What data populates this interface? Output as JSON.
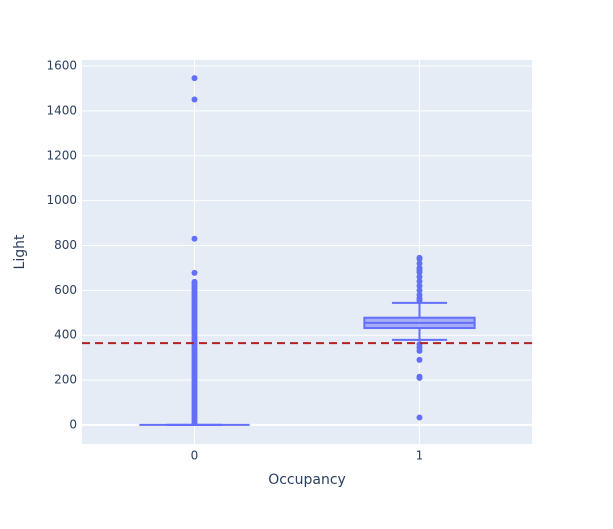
{
  "chart_data": {
    "type": "box",
    "x_label": "Occupancy",
    "y_label": "Light",
    "categories": [
      "0",
      "1"
    ],
    "color": "#636efa",
    "boxes": [
      {
        "min": 0,
        "q1": 0,
        "median": 0,
        "q3": 0,
        "max": 0,
        "outliers": [
          1546,
          1451,
          830,
          678,
          638,
          630,
          620,
          610,
          600,
          590,
          580,
          570,
          560,
          550,
          540,
          530,
          520,
          510,
          500,
          490,
          480,
          470,
          460,
          450,
          440,
          430,
          420,
          410,
          400,
          390,
          380,
          370,
          360,
          350,
          340,
          330,
          320,
          310,
          300,
          290,
          280,
          270,
          260,
          250,
          240,
          230,
          220,
          210,
          200,
          190,
          180,
          170,
          160,
          150,
          140,
          130,
          120,
          110,
          100,
          90,
          80,
          70,
          60,
          50,
          40,
          30,
          20,
          10
        ]
      },
      {
        "min": 379,
        "q1": 432,
        "median": 455,
        "q3": 478,
        "max": 544,
        "outliers": [
          745,
          740,
          720,
          700,
          690,
          680,
          660,
          640,
          620,
          600,
          580,
          565,
          555,
          360,
          345,
          330,
          290,
          215,
          210,
          33
        ]
      }
    ],
    "hline": {
      "value": 365,
      "color": "#b22222",
      "dash": true
    },
    "ylim": [
      -85,
      1627
    ],
    "yticks": [
      0,
      200,
      400,
      600,
      800,
      1000,
      1200,
      1400,
      1600
    ],
    "grid": true
  }
}
